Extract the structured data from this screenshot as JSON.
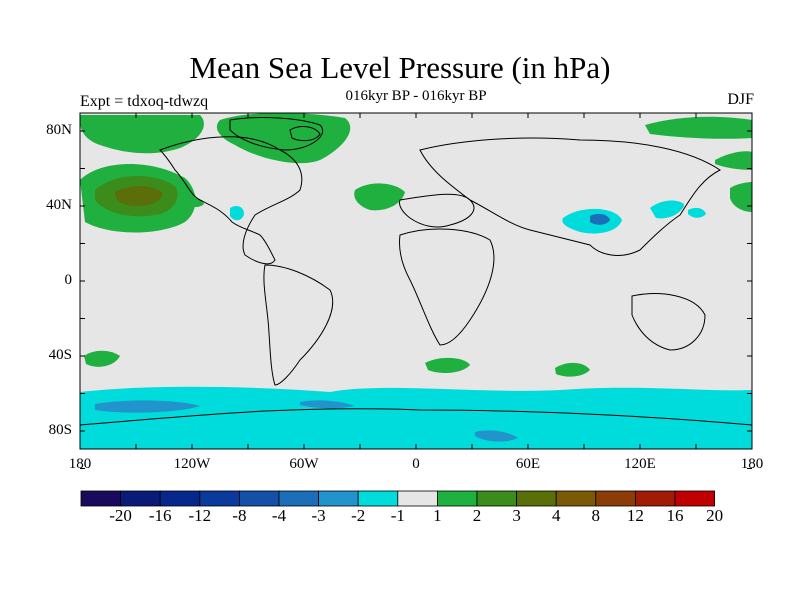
{
  "title": "Mean Sea Level Pressure (in hPa)",
  "subtitle": "016kyr BP - 016kyr BP",
  "left_label": "Expt = tdxoq-tdwzq",
  "right_label": "DJF",
  "y_axis": {
    "ticks": [
      "80N",
      "40N",
      "0",
      "40S",
      "80S"
    ]
  },
  "x_axis": {
    "ticks": [
      "180",
      "120W",
      "60W",
      "0",
      "60E",
      "120E",
      "180"
    ]
  },
  "colorbar": {
    "colors": [
      "#1a0a5e",
      "#0a1a78",
      "#06288c",
      "#0a3a9c",
      "#1450a8",
      "#1c6eb8",
      "#2294cc",
      "#00dcdc",
      "#e6e6e6",
      "#20b040",
      "#3c8c1c",
      "#5a6e0a",
      "#7a5a06",
      "#8c3c06",
      "#a01c06",
      "#c00000"
    ],
    "labels": [
      "-20",
      "-16",
      "-12",
      "-8",
      "-4",
      "-3",
      "-2",
      "-1",
      "1",
      "2",
      "3",
      "4",
      "8",
      "12",
      "16",
      "20"
    ]
  },
  "colors": {
    "background": "#e6e6e6",
    "positive_light": "#20b040",
    "positive_strong": "#5a6e0a",
    "negative_light": "#00dcdc",
    "negative_mid": "#2294cc",
    "negative_strong": "#1c6eb8"
  }
}
